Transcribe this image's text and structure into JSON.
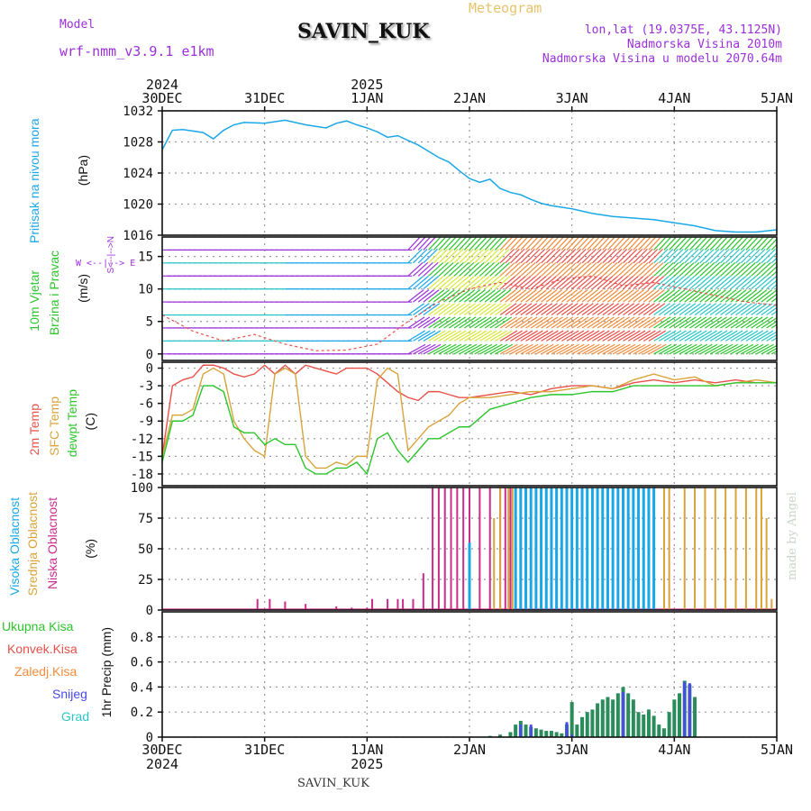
{
  "header": {
    "model_label": "Model",
    "model_name": "wrf-nmm_v3.9.1 e1km",
    "station": "SAVIN_KUK",
    "meteogram": "Meteogram",
    "lonlat": "lon,lat (19.0375E, 43.1125N)",
    "altitude": "Nadmorska Visina 2010m",
    "model_altitude": "Nadmorska Visina u modelu 2070.64m"
  },
  "footer": {
    "station": "SAVIN_KUK",
    "made_by": "made by Angel"
  },
  "time_axis": {
    "labels": [
      "30DEC",
      "31DEC",
      "1JAN",
      "2JAN",
      "3JAN",
      "4JAN",
      "5JAN"
    ],
    "years": {
      "0": "2024",
      "2": "2025"
    },
    "days": 6
  },
  "panel_labels": {
    "pressure": [
      "Pritisak na nivou mora",
      "(hPa)"
    ],
    "wind": [
      "10m Vjetar",
      "Brzina i Pravac",
      "(m/s)"
    ],
    "wind_dir": "W <--|--> E",
    "wind_dir2": "S<--|-->N",
    "temp": [
      "2m Temp",
      "SFC Temp",
      "dewpt Temp",
      "(C)"
    ],
    "cloud": [
      "Visoka Oblacnost",
      "Srednja Oblacnost",
      "Niska Oblacnost",
      "(%)"
    ],
    "precip": [
      "Ukupna Kisa",
      "Konvek.Kisa",
      "Zaledj.Kisa",
      "Snijeg",
      "Grad",
      "1hr Precip (mm)"
    ]
  },
  "colors": {
    "pressure": "#1aa7e8",
    "temp2m": "#e8504a",
    "sfc": "#d8a43a",
    "dewpt": "#2cc52c",
    "high_cloud": "#1aa7e8",
    "mid_cloud": "#d8a43a",
    "low_cloud": "#cc2c8c",
    "total_rain": "#2cc52c",
    "conv_rain": "#e8504a",
    "frz_rain": "#f08c3a",
    "snow": "#4a4ae8",
    "hail": "#2cc5c5",
    "wind_calm": "#9b30d9"
  },
  "chart_data": [
    {
      "id": "pressure",
      "type": "line",
      "ylabel": "Pritisak na nivou mora (hPa)",
      "ylim": [
        1016,
        1032
      ],
      "yticks": [
        1016,
        1020,
        1024,
        1028,
        1032
      ],
      "x": [
        0,
        0.1,
        0.2,
        0.3,
        0.4,
        0.5,
        0.6,
        0.7,
        0.8,
        1.0,
        1.2,
        1.4,
        1.6,
        1.7,
        1.8,
        1.9,
        2.0,
        2.1,
        2.2,
        2.3,
        2.4,
        2.5,
        2.6,
        2.7,
        2.8,
        2.9,
        3.0,
        3.1,
        3.2,
        3.3,
        3.4,
        3.5,
        3.6,
        3.7,
        3.8,
        3.9,
        4.0,
        4.2,
        4.4,
        4.6,
        4.8,
        5.0,
        5.2,
        5.4,
        5.6,
        5.8,
        6.0
      ],
      "series": [
        {
          "values": [
            1027,
            1029.5,
            1029.6,
            1029.4,
            1029.2,
            1028.4,
            1029.5,
            1030.2,
            1030.5,
            1030.4,
            1030.8,
            1030.2,
            1029.8,
            1030.4,
            1030.7,
            1030.2,
            1029.8,
            1029.3,
            1028.6,
            1028.8,
            1028.2,
            1027.6,
            1026.8,
            1026.0,
            1025.4,
            1024.3,
            1023.3,
            1022.8,
            1023.2,
            1022.0,
            1021.5,
            1021.2,
            1020.6,
            1020.1,
            1019.8,
            1019.6,
            1019.4,
            1018.8,
            1018.4,
            1018.2,
            1018.0,
            1017.6,
            1017.2,
            1016.6,
            1016.4,
            1016.4,
            1016.7
          ]
        }
      ]
    },
    {
      "id": "wind",
      "type": "line",
      "ylabel": "10m Vjetar Brzina i Pravac (m/s)",
      "ylim": [
        -1,
        18
      ],
      "yticks": [
        0,
        5,
        10,
        15
      ],
      "x": [
        0,
        0.3,
        0.6,
        0.9,
        1.2,
        1.5,
        1.8,
        2.1,
        2.4,
        2.7,
        3.0,
        3.3,
        3.6,
        3.9,
        4.2,
        4.5,
        4.8,
        5.1,
        5.4,
        5.7,
        6.0
      ],
      "series": [
        {
          "values": [
            6,
            3.5,
            2,
            3,
            1.5,
            0.5,
            0.6,
            1.5,
            5,
            8,
            10,
            11,
            10,
            11.5,
            12,
            10.5,
            11,
            10,
            9,
            8,
            7.5
          ]
        }
      ]
    },
    {
      "id": "temperature",
      "type": "line",
      "ylabel": "(C)",
      "ylim": [
        -20,
        1
      ],
      "yticks": [
        0,
        -3,
        -6,
        -9,
        -12,
        -15,
        -18
      ],
      "x": [
        0,
        0.1,
        0.2,
        0.3,
        0.4,
        0.5,
        0.6,
        0.7,
        0.8,
        0.9,
        1.0,
        1.1,
        1.2,
        1.3,
        1.4,
        1.5,
        1.6,
        1.7,
        1.8,
        1.9,
        2.0,
        2.1,
        2.2,
        2.3,
        2.4,
        2.5,
        2.6,
        2.7,
        2.8,
        2.9,
        3.0,
        3.2,
        3.4,
        3.6,
        3.8,
        4.0,
        4.2,
        4.4,
        4.6,
        4.8,
        5.0,
        5.2,
        5.4,
        5.6,
        5.8,
        6.0
      ],
      "series": [
        {
          "values": [
            -15,
            -3,
            -2,
            -1.5,
            0.5,
            0.5,
            0,
            -1,
            -1.5,
            -1,
            0.5,
            -1,
            0.5,
            -1,
            0.5,
            0,
            -0.5,
            -1,
            0,
            0,
            0,
            -1,
            -2.5,
            -4,
            -5,
            -5.5,
            -4,
            -4,
            -4.5,
            -5,
            -5,
            -4.5,
            -4,
            -4.5,
            -3.5,
            -3,
            -3,
            -3.5,
            -2.5,
            -2,
            -2.5,
            -2,
            -2.5,
            -2,
            -2.5,
            -2.5
          ]
        },
        {
          "values": [
            -15,
            -8,
            -8,
            -7,
            -1,
            0,
            -1,
            -9,
            -12,
            -14,
            -15,
            -1,
            0,
            -1,
            -15,
            -17,
            -17,
            -16,
            -16.5,
            -15,
            -15,
            -2,
            0,
            -1,
            -14,
            -12,
            -10,
            -9,
            -8,
            -6,
            -5,
            -5,
            -4.5,
            -4,
            -4,
            -3.5,
            -3,
            -3.5,
            -2,
            -1,
            -2,
            -1.5,
            -3,
            -2.5,
            -2,
            -2.5
          ]
        },
        {
          "values": [
            -16,
            -9,
            -9,
            -8,
            -3,
            -3,
            -4,
            -10,
            -11,
            -11,
            -13,
            -12,
            -13,
            -13,
            -17,
            -18,
            -18,
            -17,
            -17,
            -16,
            -18,
            -12,
            -11,
            -14,
            -16,
            -14,
            -12,
            -12,
            -11,
            -10,
            -10,
            -7,
            -6,
            -5,
            -4.5,
            -4.5,
            -4,
            -4,
            -3,
            -3,
            -3,
            -3,
            -3,
            -2.5,
            -2.5,
            -2.5
          ]
        }
      ]
    },
    {
      "id": "cloud",
      "type": "bar",
      "ylabel": "(%)",
      "ylim": [
        0,
        100
      ],
      "yticks": [
        0,
        25,
        50,
        75,
        100
      ],
      "low_bars": [
        [
          0.93,
          9
        ],
        [
          1.05,
          9
        ],
        [
          1.2,
          7
        ],
        [
          1.4,
          5
        ],
        [
          1.7,
          3
        ],
        [
          1.85,
          2
        ],
        [
          2.0,
          2
        ],
        [
          2.05,
          9
        ],
        [
          2.2,
          9
        ],
        [
          2.3,
          9
        ],
        [
          2.35,
          9
        ],
        [
          2.45,
          9
        ],
        [
          2.55,
          30
        ],
        [
          2.64,
          100
        ],
        [
          2.7,
          100
        ],
        [
          2.76,
          100
        ],
        [
          2.82,
          100
        ],
        [
          2.88,
          100
        ],
        [
          2.94,
          100
        ],
        [
          3.0,
          100
        ],
        [
          3.1,
          100
        ],
        [
          3.2,
          100
        ],
        [
          3.3,
          100
        ],
        [
          3.35,
          100
        ],
        [
          3.4,
          100
        ],
        [
          3.45,
          100
        ]
      ],
      "mid_bars": [
        [
          3.24,
          75
        ],
        [
          3.3,
          100
        ],
        [
          3.38,
          100
        ],
        [
          3.42,
          100
        ],
        [
          4.9,
          100
        ],
        [
          4.95,
          100
        ],
        [
          5.1,
          100
        ],
        [
          5.2,
          100
        ],
        [
          5.3,
          100
        ],
        [
          5.4,
          100
        ],
        [
          5.5,
          100
        ],
        [
          5.6,
          100
        ],
        [
          5.7,
          100
        ],
        [
          5.8,
          100
        ],
        [
          5.85,
          100
        ],
        [
          5.9,
          75
        ],
        [
          5.95,
          9
        ]
      ],
      "high_bars": [
        [
          3.0,
          55
        ],
        [
          3.45,
          100
        ],
        [
          3.5,
          100
        ],
        [
          3.55,
          100
        ],
        [
          3.6,
          100
        ],
        [
          3.65,
          100
        ],
        [
          3.7,
          100
        ],
        [
          3.75,
          100
        ],
        [
          3.8,
          100
        ],
        [
          3.85,
          100
        ],
        [
          3.9,
          100
        ],
        [
          3.95,
          100
        ],
        [
          4.0,
          100
        ],
        [
          4.05,
          100
        ],
        [
          4.1,
          100
        ],
        [
          4.15,
          100
        ],
        [
          4.2,
          100
        ],
        [
          4.25,
          100
        ],
        [
          4.3,
          100
        ],
        [
          4.35,
          100
        ],
        [
          4.4,
          100
        ],
        [
          4.45,
          100
        ],
        [
          4.5,
          100
        ],
        [
          4.55,
          100
        ],
        [
          4.6,
          100
        ],
        [
          4.65,
          100
        ],
        [
          4.7,
          100
        ],
        [
          4.75,
          100
        ],
        [
          4.8,
          100
        ]
      ]
    },
    {
      "id": "precip",
      "type": "bar",
      "ylabel": "1hr Precip (mm)",
      "ylim": [
        0,
        1.0
      ],
      "yticks": [
        0,
        0.2,
        0.4,
        0.6,
        0.8
      ],
      "total_bars": [
        [
          3.2,
          0.01
        ],
        [
          3.3,
          0.02
        ],
        [
          3.4,
          0.04
        ],
        [
          3.45,
          0.1
        ],
        [
          3.5,
          0.13
        ],
        [
          3.55,
          0.1
        ],
        [
          3.6,
          0.08
        ],
        [
          3.65,
          0.07
        ],
        [
          3.7,
          0.06
        ],
        [
          3.75,
          0.05
        ],
        [
          3.8,
          0.05
        ],
        [
          3.85,
          0.04
        ],
        [
          3.9,
          0.03
        ],
        [
          3.95,
          0.1
        ],
        [
          4.0,
          0.28
        ],
        [
          4.05,
          0.1
        ],
        [
          4.1,
          0.16
        ],
        [
          4.15,
          0.2
        ],
        [
          4.2,
          0.22
        ],
        [
          4.25,
          0.27
        ],
        [
          4.3,
          0.3
        ],
        [
          4.35,
          0.32
        ],
        [
          4.4,
          0.3
        ],
        [
          4.45,
          0.35
        ],
        [
          4.5,
          0.4
        ],
        [
          4.55,
          0.35
        ],
        [
          4.6,
          0.3
        ],
        [
          4.65,
          0.2
        ],
        [
          4.7,
          0.18
        ],
        [
          4.75,
          0.22
        ],
        [
          4.8,
          0.17
        ],
        [
          4.85,
          0.1
        ],
        [
          4.9,
          0.07
        ],
        [
          4.95,
          0.2
        ],
        [
          5.0,
          0.3
        ],
        [
          5.05,
          0.35
        ],
        [
          5.1,
          0.45
        ],
        [
          5.15,
          0.42
        ],
        [
          5.2,
          0.32
        ]
      ],
      "snow_bars": [
        [
          3.5,
          0.1
        ],
        [
          3.6,
          0.1
        ],
        [
          3.95,
          0.12
        ],
        [
          4.0,
          0.02
        ],
        [
          4.5,
          0.36
        ],
        [
          5.1,
          0.44
        ],
        [
          5.15,
          0.43
        ]
      ]
    }
  ]
}
